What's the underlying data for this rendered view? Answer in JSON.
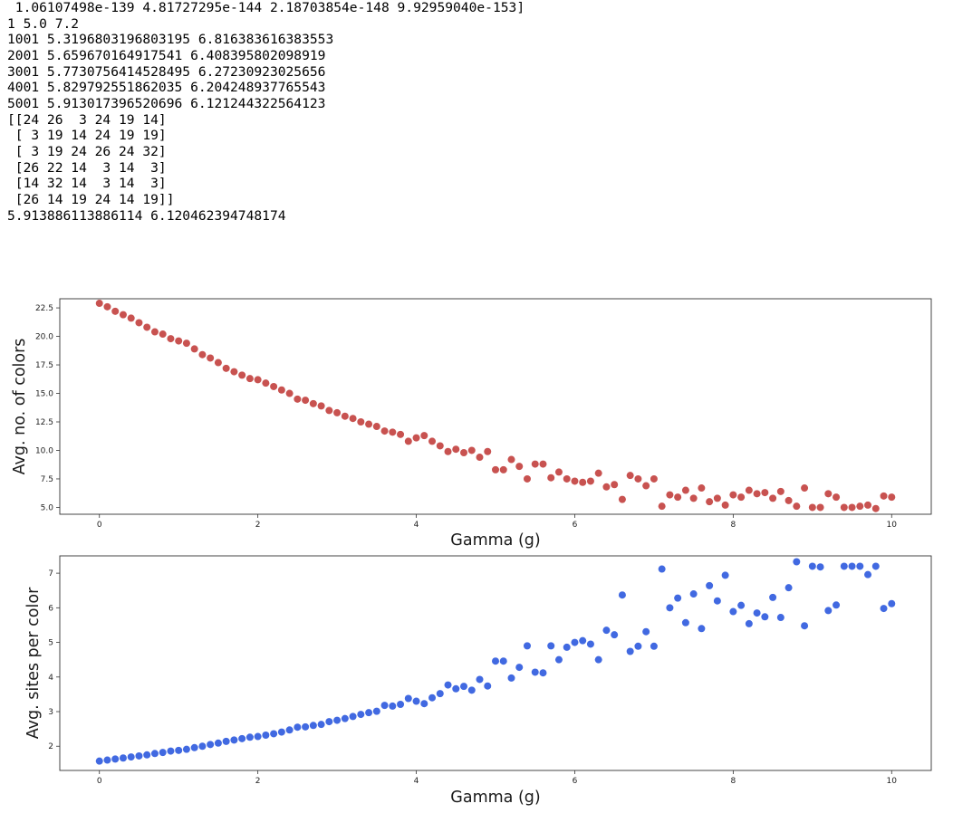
{
  "output": {
    "lines": [
      " 1.06107498e-139 4.81727295e-144 2.18703854e-148 9.92959040e-153]",
      "1 5.0 7.2",
      "1001 5.3196803196803195 6.816383616383553",
      "2001 5.659670164917541 6.408395802098919",
      "3001 5.7730756414528495 6.27230923025656",
      "4001 5.829792551862035 6.204248937765543",
      "5001 5.913017396520696 6.121244322564123",
      "[[24 26  3 24 19 14]",
      " [ 3 19 14 24 19 19]",
      " [ 3 19 24 26 24 32]",
      " [26 22 14  3 14  3]",
      " [14 32 14  3 14  3]",
      " [26 14 19 24 14 19]]",
      "5.913886113886114 6.120462394748174"
    ]
  },
  "chart_data": [
    {
      "type": "scatter",
      "title": "",
      "xlabel": "Gamma (g)",
      "ylabel": "Avg. no. of colors",
      "xlim": [
        -0.5,
        10.5
      ],
      "ylim": [
        4.4,
        23.3
      ],
      "xticks": [
        0,
        2,
        4,
        6,
        8,
        10
      ],
      "yticks": [
        5.0,
        7.5,
        10.0,
        12.5,
        15.0,
        17.5,
        20.0,
        22.5
      ],
      "ytick_labels": [
        "5.0",
        "7.5",
        "10.0",
        "12.5",
        "15.0",
        "17.5",
        "20.0",
        "22.5"
      ],
      "xtick_labels": [
        "0",
        "2",
        "4",
        "6",
        "8",
        "10"
      ],
      "grid": false,
      "color": "#c85250",
      "series": [
        {
          "x": [
            0.0,
            0.1,
            0.2,
            0.3,
            0.4,
            0.5,
            0.6,
            0.7,
            0.8,
            0.9,
            1.0,
            1.1,
            1.2,
            1.3,
            1.4,
            1.5,
            1.6,
            1.7,
            1.8,
            1.9,
            2.0,
            2.1,
            2.2,
            2.3,
            2.4,
            2.5,
            2.6,
            2.7,
            2.8,
            2.9,
            3.0,
            3.1,
            3.2,
            3.3,
            3.4,
            3.5,
            3.6,
            3.7,
            3.8,
            3.9,
            4.0,
            4.1,
            4.2,
            4.3,
            4.4,
            4.5,
            4.6,
            4.7,
            4.8,
            4.9,
            5.0,
            5.1,
            5.2,
            5.3,
            5.4,
            5.5,
            5.6,
            5.7,
            5.8,
            5.9,
            6.0,
            6.1,
            6.2,
            6.3,
            6.4,
            6.5,
            6.6,
            6.7,
            6.8,
            6.9,
            7.0,
            7.1,
            7.2,
            7.3,
            7.4,
            7.5,
            7.6,
            7.7,
            7.8,
            7.9,
            8.0,
            8.1,
            8.2,
            8.3,
            8.4,
            8.5,
            8.6,
            8.7,
            8.8,
            8.9,
            9.0,
            9.1,
            9.2,
            9.3,
            9.4,
            9.5,
            9.6,
            9.7,
            9.8,
            9.9,
            10.0
          ],
          "y": [
            22.9,
            22.6,
            22.2,
            21.9,
            21.6,
            21.2,
            20.8,
            20.4,
            20.2,
            19.8,
            19.6,
            19.4,
            18.9,
            18.4,
            18.1,
            17.7,
            17.2,
            16.9,
            16.6,
            16.3,
            16.2,
            15.9,
            15.6,
            15.3,
            15.0,
            14.5,
            14.4,
            14.1,
            13.9,
            13.5,
            13.3,
            13.0,
            12.8,
            12.5,
            12.3,
            12.1,
            11.7,
            11.6,
            11.4,
            10.8,
            11.1,
            11.3,
            10.8,
            10.4,
            9.9,
            10.1,
            9.8,
            10.0,
            9.4,
            9.9,
            8.3,
            8.3,
            9.2,
            8.6,
            7.5,
            8.8,
            8.8,
            7.6,
            8.1,
            7.5,
            7.3,
            7.2,
            7.3,
            8.0,
            6.8,
            7.0,
            5.7,
            7.8,
            7.5,
            6.9,
            7.5,
            5.1,
            6.1,
            5.9,
            6.5,
            5.8,
            6.7,
            5.5,
            5.8,
            5.2,
            6.1,
            5.9,
            6.5,
            6.2,
            6.3,
            5.8,
            6.4,
            5.6,
            5.1,
            6.7,
            5.0,
            5.0,
            6.2,
            5.9,
            5.0,
            5.0,
            5.1,
            5.2,
            4.9,
            6.0,
            5.9
          ]
        }
      ]
    },
    {
      "type": "scatter",
      "title": "",
      "xlabel": "Gamma (g)",
      "ylabel": "Avg. sites per color",
      "xlim": [
        -0.5,
        10.5
      ],
      "ylim": [
        1.3,
        7.5
      ],
      "xticks": [
        0,
        2,
        4,
        6,
        8,
        10
      ],
      "yticks": [
        2,
        3,
        4,
        5,
        6,
        7
      ],
      "ytick_labels": [
        "2",
        "3",
        "4",
        "5",
        "6",
        "7"
      ],
      "xtick_labels": [
        "0",
        "2",
        "4",
        "6",
        "8",
        "10"
      ],
      "grid": false,
      "color": "#4169e1",
      "series": [
        {
          "x": [
            0.0,
            0.1,
            0.2,
            0.3,
            0.4,
            0.5,
            0.6,
            0.7,
            0.8,
            0.9,
            1.0,
            1.1,
            1.2,
            1.3,
            1.4,
            1.5,
            1.6,
            1.7,
            1.8,
            1.9,
            2.0,
            2.1,
            2.2,
            2.3,
            2.4,
            2.5,
            2.6,
            2.7,
            2.8,
            2.9,
            3.0,
            3.1,
            3.2,
            3.3,
            3.4,
            3.5,
            3.6,
            3.7,
            3.8,
            3.9,
            4.0,
            4.1,
            4.2,
            4.3,
            4.4,
            4.5,
            4.6,
            4.7,
            4.8,
            4.9,
            5.0,
            5.1,
            5.2,
            5.3,
            5.4,
            5.5,
            5.6,
            5.7,
            5.8,
            5.9,
            6.0,
            6.1,
            6.2,
            6.3,
            6.4,
            6.5,
            6.6,
            6.7,
            6.8,
            6.9,
            7.0,
            7.1,
            7.2,
            7.3,
            7.4,
            7.5,
            7.6,
            7.7,
            7.8,
            7.9,
            8.0,
            8.1,
            8.2,
            8.3,
            8.4,
            8.5,
            8.6,
            8.7,
            8.8,
            8.9,
            9.0,
            9.1,
            9.2,
            9.3,
            9.4,
            9.5,
            9.6,
            9.7,
            9.8,
            9.9,
            10.0
          ],
          "y": [
            1.57,
            1.6,
            1.63,
            1.66,
            1.69,
            1.72,
            1.75,
            1.79,
            1.82,
            1.86,
            1.88,
            1.91,
            1.96,
            2.0,
            2.05,
            2.09,
            2.14,
            2.18,
            2.22,
            2.26,
            2.28,
            2.32,
            2.36,
            2.41,
            2.47,
            2.55,
            2.56,
            2.6,
            2.63,
            2.71,
            2.75,
            2.8,
            2.86,
            2.92,
            2.97,
            3.01,
            3.18,
            3.16,
            3.21,
            3.38,
            3.3,
            3.23,
            3.4,
            3.52,
            3.77,
            3.66,
            3.73,
            3.62,
            3.93,
            3.74,
            4.46,
            4.46,
            3.97,
            4.28,
            4.9,
            4.14,
            4.12,
            4.9,
            4.5,
            4.86,
            5.0,
            5.05,
            4.95,
            4.5,
            5.35,
            5.22,
            6.37,
            4.74,
            4.89,
            5.31,
            4.89,
            7.12,
            6.0,
            6.28,
            5.57,
            6.4,
            5.4,
            6.64,
            6.2,
            6.94,
            5.89,
            6.07,
            5.54,
            5.85,
            5.74,
            6.3,
            5.72,
            6.58,
            7.33,
            5.48,
            7.2,
            7.18,
            5.92,
            6.08,
            7.2,
            7.2,
            7.2,
            6.96,
            7.2,
            5.98,
            6.12
          ]
        }
      ]
    }
  ]
}
